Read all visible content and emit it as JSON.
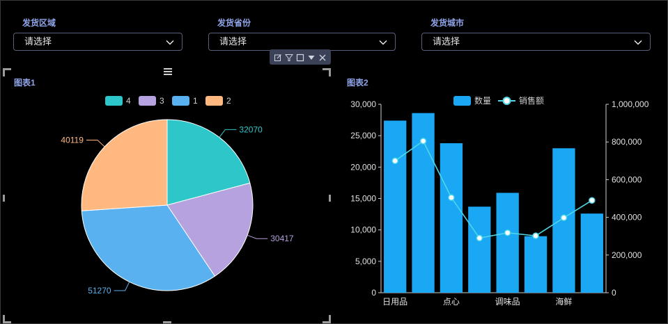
{
  "filters": [
    {
      "label": "发货区域",
      "value": "请选择"
    },
    {
      "label": "发货省份",
      "value": "请选择"
    },
    {
      "label": "发货城市",
      "value": "请选择"
    }
  ],
  "toolbar": {
    "icons": [
      "edit-icon",
      "filter-icon",
      "square-icon",
      "caret-down-icon",
      "close-icon"
    ]
  },
  "chart_data": [
    {
      "type": "pie",
      "panel_title": "图表1",
      "legend": [
        "4",
        "3",
        "1",
        "2"
      ],
      "legend_position": "top-center",
      "slices": [
        {
          "name": "4",
          "value": 32070,
          "color": "#2ec7c9"
        },
        {
          "name": "3",
          "value": 30417,
          "color": "#b6a2de"
        },
        {
          "name": "1",
          "value": 51270,
          "color": "#5ab1ef"
        },
        {
          "name": "2",
          "value": 40119,
          "color": "#ffb980"
        }
      ]
    },
    {
      "type": "bar",
      "panel_title": "图表2",
      "legend_position": "top-center",
      "categories": [
        "日用品",
        "",
        "点心",
        "",
        "调味品",
        "",
        "海鲜",
        ""
      ],
      "series": [
        {
          "name": "数量",
          "type": "bar",
          "axis": "left",
          "color": "#1aa8f5",
          "values": [
            27400,
            28600,
            23800,
            13700,
            15900,
            9000,
            23000,
            12600
          ]
        },
        {
          "name": "销售额",
          "type": "line",
          "axis": "right",
          "color": "#4fd6e8",
          "values": [
            700000,
            805000,
            505000,
            290000,
            318000,
            302000,
            398000,
            490000
          ]
        }
      ],
      "y_left": {
        "min": 0,
        "max": 30000,
        "ticks": [
          "0",
          "5,000",
          "10,000",
          "15,000",
          "20,000",
          "25,000",
          "30,000"
        ]
      },
      "y_right": {
        "min": 0,
        "max": 1000000,
        "ticks": [
          "0",
          "200,000",
          "400,000",
          "600,000",
          "800,000",
          "1,000,000"
        ]
      },
      "grid": false
    }
  ]
}
